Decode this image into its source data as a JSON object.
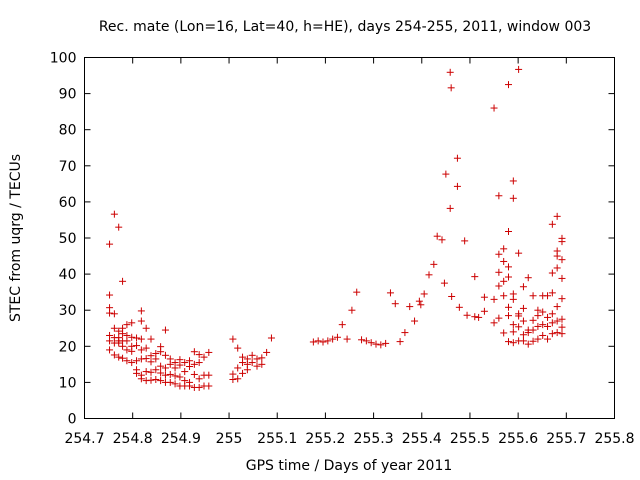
{
  "chart_data": {
    "type": "scatter",
    "title": "Rec. mate (Lon=16, Lat=40, h=HE), days 254-255, 2011, window 003",
    "xlabel": "GPS time / Days of year 2011",
    "ylabel": "STEC from uqrg / TECUs",
    "xlim": [
      254.7,
      255.8
    ],
    "ylim": [
      0,
      100
    ],
    "xticks": [
      "254.7",
      "254.8",
      "254.9",
      "255",
      "255.1",
      "255.2",
      "255.3",
      "255.4",
      "255.5",
      "255.6",
      "255.7",
      "255.8"
    ],
    "yticks": [
      "0",
      "10",
      "20",
      "30",
      "40",
      "50",
      "60",
      "70",
      "80",
      "90",
      "100"
    ],
    "marker": "+",
    "color": "#cc0000",
    "grid": false,
    "legend": "none",
    "points": [
      [
        254.752,
        48.3
      ],
      [
        254.752,
        34.2
      ],
      [
        254.752,
        30.7
      ],
      [
        254.752,
        29.2
      ],
      [
        254.752,
        23.0
      ],
      [
        254.752,
        21.5
      ],
      [
        254.752,
        19.0
      ],
      [
        254.762,
        56.6
      ],
      [
        254.762,
        29.0
      ],
      [
        254.762,
        25.0
      ],
      [
        254.762,
        22.4
      ],
      [
        254.762,
        20.9
      ],
      [
        254.762,
        17.6
      ],
      [
        254.771,
        53.0
      ],
      [
        254.771,
        24.2
      ],
      [
        254.771,
        22.4
      ],
      [
        254.771,
        21.5
      ],
      [
        254.771,
        20.9
      ],
      [
        254.771,
        17.0
      ],
      [
        254.779,
        38.0
      ],
      [
        254.779,
        25.0
      ],
      [
        254.779,
        23.5
      ],
      [
        254.779,
        21.5
      ],
      [
        254.779,
        20.0
      ],
      [
        254.779,
        16.7
      ],
      [
        254.788,
        26.0
      ],
      [
        254.788,
        23.0
      ],
      [
        254.788,
        21.5
      ],
      [
        254.788,
        19.0
      ],
      [
        254.788,
        16.0
      ],
      [
        254.798,
        26.5
      ],
      [
        254.798,
        22.5
      ],
      [
        254.798,
        20.0
      ],
      [
        254.798,
        18.6
      ],
      [
        254.798,
        15.5
      ],
      [
        254.808,
        22.3
      ],
      [
        254.808,
        20.2
      ],
      [
        254.808,
        16.0
      ],
      [
        254.808,
        13.5
      ],
      [
        254.808,
        12.5
      ],
      [
        254.818,
        29.8
      ],
      [
        254.818,
        27.0
      ],
      [
        254.818,
        22.0
      ],
      [
        254.818,
        19.0
      ],
      [
        254.818,
        16.5
      ],
      [
        254.818,
        12.0
      ],
      [
        254.818,
        11.0
      ],
      [
        254.828,
        25.0
      ],
      [
        254.828,
        19.5
      ],
      [
        254.828,
        16.6
      ],
      [
        254.828,
        13.0
      ],
      [
        254.828,
        10.5
      ],
      [
        254.838,
        22.0
      ],
      [
        254.838,
        17.4
      ],
      [
        254.838,
        15.7
      ],
      [
        254.838,
        12.8
      ],
      [
        254.838,
        10.6
      ],
      [
        254.848,
        18.0
      ],
      [
        254.848,
        16.5
      ],
      [
        254.848,
        13.5
      ],
      [
        254.848,
        10.8
      ],
      [
        254.858,
        19.9
      ],
      [
        254.858,
        18.5
      ],
      [
        254.858,
        14.5
      ],
      [
        254.858,
        12.6
      ],
      [
        254.858,
        10.5
      ],
      [
        254.868,
        24.5
      ],
      [
        254.868,
        17.5
      ],
      [
        254.868,
        14.0
      ],
      [
        254.868,
        12.0
      ],
      [
        254.868,
        10.0
      ],
      [
        254.878,
        16.5
      ],
      [
        254.878,
        15.0
      ],
      [
        254.878,
        12.2
      ],
      [
        254.878,
        10.0
      ],
      [
        254.888,
        15.5
      ],
      [
        254.888,
        14.0
      ],
      [
        254.888,
        11.8
      ],
      [
        254.888,
        9.6
      ],
      [
        254.898,
        16.3
      ],
      [
        254.898,
        14.8
      ],
      [
        254.898,
        11.5
      ],
      [
        254.898,
        9.0
      ],
      [
        254.908,
        15.5
      ],
      [
        254.908,
        13.0
      ],
      [
        254.908,
        10.5
      ],
      [
        254.908,
        9.0
      ],
      [
        254.918,
        16.0
      ],
      [
        254.918,
        14.4
      ],
      [
        254.918,
        10.0
      ],
      [
        254.918,
        9.0
      ],
      [
        254.928,
        18.5
      ],
      [
        254.928,
        15.0
      ],
      [
        254.928,
        12.2
      ],
      [
        254.928,
        8.6
      ],
      [
        254.938,
        17.7
      ],
      [
        254.938,
        15.5
      ],
      [
        254.938,
        11.0
      ],
      [
        254.938,
        8.6
      ],
      [
        254.948,
        17.0
      ],
      [
        254.948,
        12.0
      ],
      [
        254.948,
        9.0
      ],
      [
        254.958,
        18.3
      ],
      [
        254.958,
        12.0
      ],
      [
        254.958,
        9.0
      ],
      [
        255.008,
        22.0
      ],
      [
        255.008,
        12.3
      ],
      [
        255.008,
        10.8
      ],
      [
        255.018,
        19.5
      ],
      [
        255.018,
        14.0
      ],
      [
        255.018,
        11.0
      ],
      [
        255.028,
        17.0
      ],
      [
        255.028,
        15.5
      ],
      [
        255.028,
        12.5
      ],
      [
        255.038,
        16.5
      ],
      [
        255.038,
        15.0
      ],
      [
        255.038,
        13.5
      ],
      [
        255.048,
        17.5
      ],
      [
        255.048,
        15.5
      ],
      [
        255.058,
        16.5
      ],
      [
        255.058,
        14.5
      ],
      [
        255.068,
        16.8
      ],
      [
        255.068,
        15.0
      ],
      [
        255.078,
        18.3
      ],
      [
        255.088,
        22.3
      ],
      [
        255.175,
        21.2
      ],
      [
        255.185,
        21.5
      ],
      [
        255.195,
        21.2
      ],
      [
        255.205,
        21.5
      ],
      [
        255.215,
        22.0
      ],
      [
        255.225,
        22.5
      ],
      [
        255.235,
        26.0
      ],
      [
        255.245,
        22.0
      ],
      [
        255.255,
        30.0
      ],
      [
        255.265,
        35.0
      ],
      [
        255.275,
        21.8
      ],
      [
        255.285,
        21.5
      ],
      [
        255.295,
        21.0
      ],
      [
        255.305,
        20.6
      ],
      [
        255.315,
        20.4
      ],
      [
        255.325,
        20.8
      ],
      [
        255.335,
        34.8
      ],
      [
        255.345,
        31.8
      ],
      [
        255.355,
        21.3
      ],
      [
        255.365,
        23.8
      ],
      [
        255.375,
        31.0
      ],
      [
        255.385,
        27.0
      ],
      [
        255.395,
        32.5
      ],
      [
        255.398,
        31.5
      ],
      [
        255.405,
        34.5
      ],
      [
        255.415,
        39.8
      ],
      [
        255.425,
        42.7
      ],
      [
        255.432,
        50.5
      ],
      [
        255.442,
        49.5
      ],
      [
        255.447,
        37.5
      ],
      [
        255.45,
        67.7
      ],
      [
        255.459,
        95.9
      ],
      [
        255.461,
        91.6
      ],
      [
        255.459,
        58.2
      ],
      [
        255.462,
        33.8
      ],
      [
        255.474,
        72.1
      ],
      [
        255.474,
        64.3
      ],
      [
        255.478,
        30.8
      ],
      [
        255.489,
        49.2
      ],
      [
        255.494,
        28.6
      ],
      [
        255.51,
        39.3
      ],
      [
        255.51,
        28.2
      ],
      [
        255.518,
        28.0
      ],
      [
        255.53,
        33.6
      ],
      [
        255.53,
        29.7
      ],
      [
        255.55,
        86.0
      ],
      [
        255.55,
        33.0
      ],
      [
        255.55,
        26.5
      ],
      [
        255.56,
        61.7
      ],
      [
        255.56,
        45.5
      ],
      [
        255.56,
        40.5
      ],
      [
        255.56,
        36.7
      ],
      [
        255.56,
        27.8
      ],
      [
        255.57,
        47.0
      ],
      [
        255.57,
        43.5
      ],
      [
        255.57,
        38.0
      ],
      [
        255.57,
        34.0
      ],
      [
        255.57,
        23.7
      ],
      [
        255.58,
        92.5
      ],
      [
        255.58,
        51.8
      ],
      [
        255.58,
        42.0
      ],
      [
        255.58,
        39.2
      ],
      [
        255.58,
        30.8
      ],
      [
        255.58,
        28.5
      ],
      [
        255.58,
        21.3
      ],
      [
        255.59,
        65.8
      ],
      [
        255.59,
        61.0
      ],
      [
        255.59,
        34.5
      ],
      [
        255.59,
        33.0
      ],
      [
        255.59,
        26.0
      ],
      [
        255.59,
        24.0
      ],
      [
        255.59,
        21.0
      ],
      [
        255.601,
        96.7
      ],
      [
        255.601,
        45.8
      ],
      [
        255.601,
        29.0
      ],
      [
        255.601,
        28.4
      ],
      [
        255.601,
        25.4
      ],
      [
        255.601,
        21.5
      ],
      [
        255.611,
        36.5
      ],
      [
        255.611,
        30.5
      ],
      [
        255.611,
        27.0
      ],
      [
        255.611,
        23.2
      ],
      [
        255.611,
        21.5
      ],
      [
        255.621,
        39.0
      ],
      [
        255.621,
        24.5
      ],
      [
        255.621,
        23.8
      ],
      [
        255.621,
        20.6
      ],
      [
        255.631,
        34.0
      ],
      [
        255.631,
        27.2
      ],
      [
        255.631,
        24.5
      ],
      [
        255.631,
        21.4
      ],
      [
        255.641,
        30.0
      ],
      [
        255.641,
        28.5
      ],
      [
        255.641,
        25.5
      ],
      [
        255.641,
        22.0
      ],
      [
        255.651,
        34.0
      ],
      [
        255.651,
        29.5
      ],
      [
        255.651,
        26.0
      ],
      [
        255.651,
        23.0
      ],
      [
        255.661,
        34.0
      ],
      [
        255.661,
        28.0
      ],
      [
        255.661,
        25.5
      ],
      [
        255.661,
        22.0
      ],
      [
        255.671,
        53.8
      ],
      [
        255.671,
        40.3
      ],
      [
        255.671,
        34.8
      ],
      [
        255.671,
        29.0
      ],
      [
        255.671,
        26.5
      ],
      [
        255.671,
        23.5
      ],
      [
        255.681,
        56.0
      ],
      [
        255.681,
        46.4
      ],
      [
        255.681,
        45.0
      ],
      [
        255.681,
        41.7
      ],
      [
        255.681,
        31.0
      ],
      [
        255.681,
        27.0
      ],
      [
        255.681,
        23.8
      ],
      [
        255.691,
        49.9
      ],
      [
        255.691,
        49.0
      ],
      [
        255.691,
        44.0
      ],
      [
        255.691,
        38.8
      ],
      [
        255.691,
        33.2
      ],
      [
        255.691,
        27.5
      ],
      [
        255.691,
        25.3
      ],
      [
        255.691,
        23.5
      ]
    ]
  }
}
